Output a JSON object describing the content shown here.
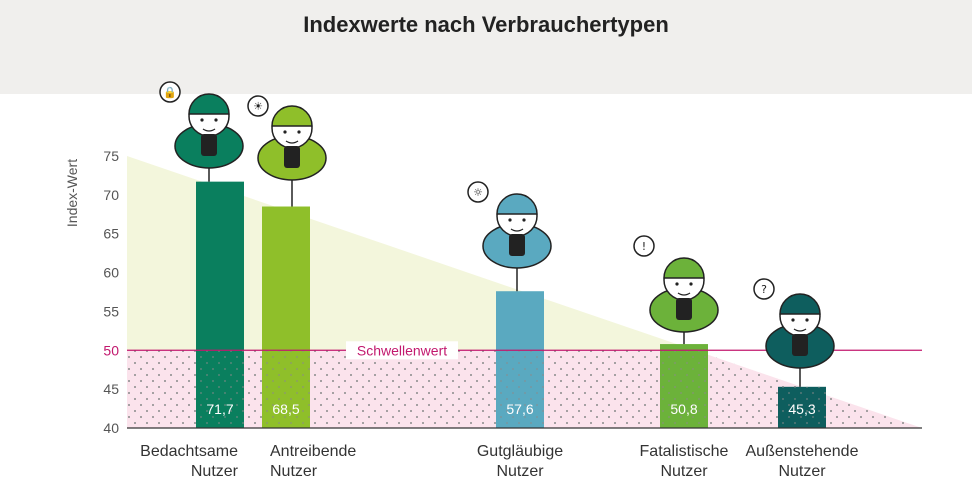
{
  "title": "Indexwerte nach Verbrauchertypen",
  "chart_data": {
    "type": "bar",
    "title": "Indexwerte nach Verbrauchertypen",
    "ylabel": "Index-Wert",
    "xlabel": "",
    "ylim": [
      40,
      75
    ],
    "yticks": [
      40,
      45,
      50,
      55,
      60,
      65,
      70,
      75
    ],
    "threshold": {
      "value": 50,
      "label": "Schwellenwert",
      "color": "#c2186e"
    },
    "categories": [
      [
        "Bedachtsame",
        "Nutzer"
      ],
      [
        "Antreibende",
        "Nutzer"
      ],
      [
        "Gutgläubige",
        "Nutzer"
      ],
      [
        "Fatalistische",
        "Nutzer"
      ],
      [
        "Außenstehende",
        "Nutzer"
      ]
    ],
    "values": [
      71.7,
      68.5,
      57.6,
      50.8,
      45.3
    ],
    "value_labels": [
      "71,7",
      "68,5",
      "57,6",
      "50,8",
      "45,3"
    ],
    "colors": [
      "#0a7f5e",
      "#8fbf2a",
      "#5aa9c0",
      "#6cb23a",
      "#0e5e5e"
    ],
    "icons": [
      "lock-icon",
      "lightbulb-icon",
      "gear-icon",
      "exclamation-icon",
      "question-icon"
    ],
    "grid": false
  }
}
